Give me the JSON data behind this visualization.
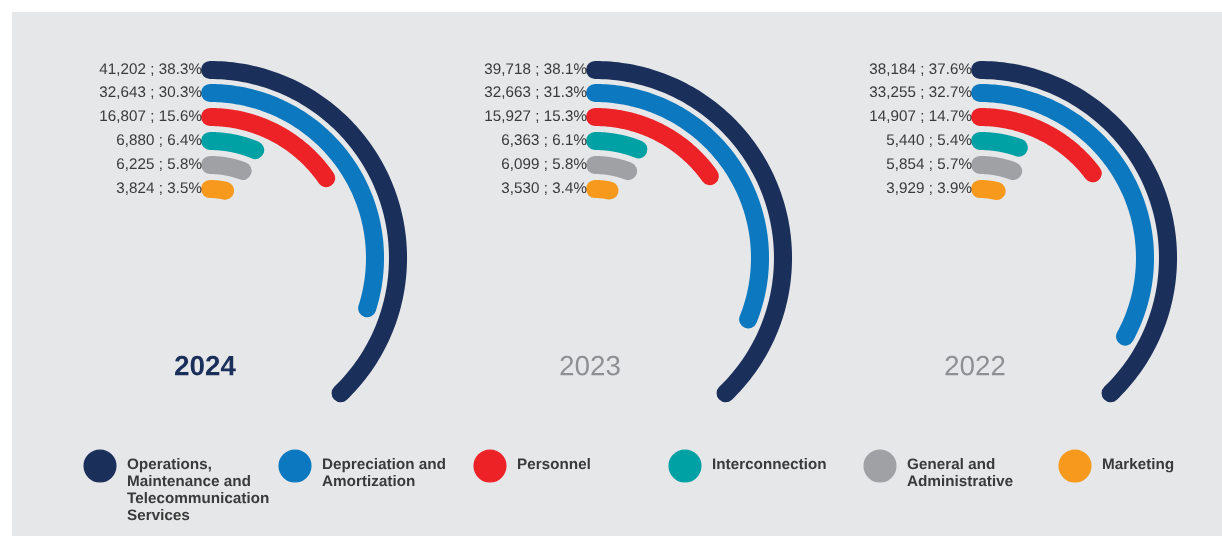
{
  "chart_data": [
    {
      "type": "other",
      "title": "2024",
      "colors": [
        "#1b2f5b",
        "#0b78c0",
        "#ec2227",
        "#00a1a4",
        "#a0a1a5",
        "#f6991d"
      ],
      "values": [
        41202,
        32643,
        16807,
        6880,
        6225,
        3824
      ],
      "value_labels": [
        "41,202 ; 38.3%",
        "32,643 ; 30.3%",
        "16,807 ; 15.6%",
        "6,880 ; 6.4%",
        "6,225 ; 5.8%",
        "3,824 ; 3.5%"
      ]
    },
    {
      "type": "other",
      "title": "2023",
      "colors": [
        "#1b2f5b",
        "#0b78c0",
        "#ec2227",
        "#00a1a4",
        "#a0a1a5",
        "#f6991d"
      ],
      "values": [
        39718,
        32663,
        15927,
        6363,
        6099,
        3530
      ],
      "value_labels": [
        "39,718 ; 38.1%",
        "32,663 ; 31.3%",
        "15,927 ; 15.3%",
        "6,363 ; 6.1%",
        "6,099 ; 5.8%",
        "3,530 ; 3.4%"
      ]
    },
    {
      "type": "other",
      "title": "2022",
      "colors": [
        "#1b2f5b",
        "#0b78c0",
        "#ec2227",
        "#00a1a4",
        "#a0a1a5",
        "#f6991d"
      ],
      "values": [
        38184,
        33255,
        14907,
        5440,
        5854,
        3929
      ],
      "value_labels": [
        "38,184 ; 37.6%",
        "33,255 ; 32.7%",
        "14,907 ; 14.7%",
        "5,440 ; 5.4%",
        "5,854 ; 5.7%",
        "3,929 ; 3.9%"
      ]
    },
    {
      "type": "other",
      "categories": [
        "Operations,\nMaintenance and\nTelecommunication\nServices",
        "Depreciation and\nAmortization",
        "Personnel",
        "Interconnection",
        "General and\nAdministrative",
        "Marketing"
      ],
      "colors": [
        "#1b2f5b",
        "#0b78c0",
        "#ec2227",
        "#00a1a4",
        "#a0a1a5",
        "#f6991d"
      ]
    }
  ]
}
